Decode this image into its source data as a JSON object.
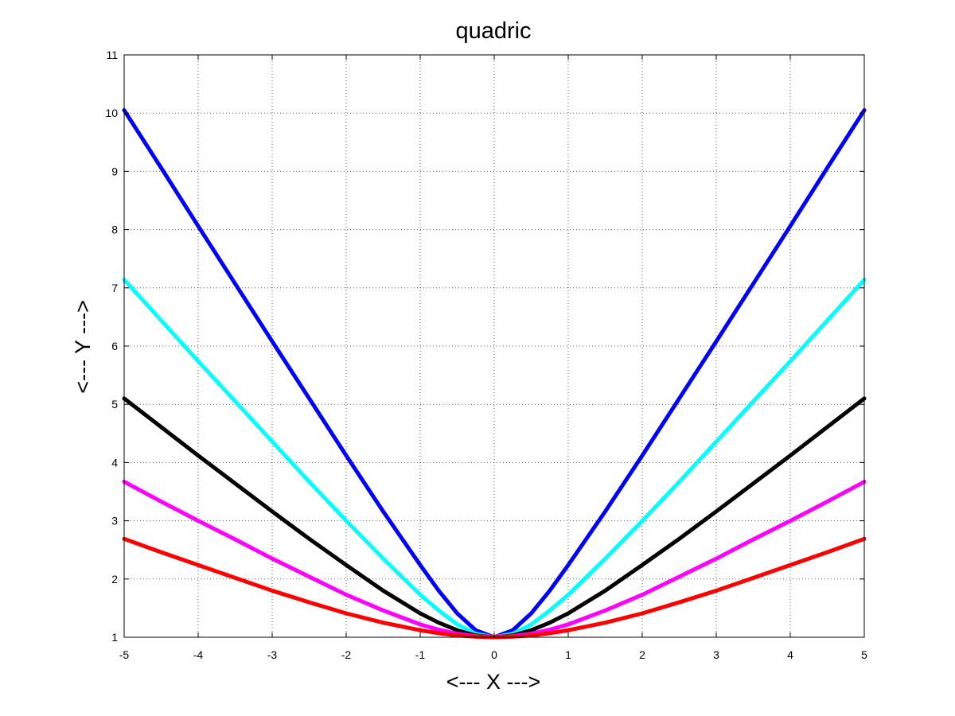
{
  "chart_data": {
    "type": "line",
    "title": "quadric",
    "xlabel": "<--- X --->",
    "ylabel": "<--- Y --->",
    "xlim": [
      -5,
      5
    ],
    "ylim": [
      1,
      11
    ],
    "xticks": [
      "-5",
      "-4",
      "-3",
      "-2",
      "-1",
      "0",
      "1",
      "2",
      "3",
      "4",
      "5"
    ],
    "yticks": [
      "1",
      "2",
      "3",
      "4",
      "5",
      "6",
      "7",
      "8",
      "9",
      "10",
      "11"
    ],
    "grid": true,
    "legend": "none",
    "x": [
      -5,
      -4.5,
      -4,
      -3.5,
      -3,
      -2.5,
      -2,
      -1.5,
      -1,
      -0.75,
      -0.5,
      -0.25,
      0,
      0.25,
      0.5,
      0.75,
      1,
      1.5,
      2,
      2.5,
      3,
      3.5,
      4,
      4.5,
      5
    ],
    "series": [
      {
        "color": "#0000ff",
        "values": [
          10.05,
          9.06,
          8.06,
          7.07,
          6.08,
          5.1,
          4.12,
          3.16,
          2.24,
          1.8,
          1.41,
          1.12,
          1.0,
          1.12,
          1.41,
          1.8,
          2.24,
          3.16,
          4.12,
          5.1,
          6.08,
          7.07,
          8.06,
          9.06,
          10.05
        ]
      },
      {
        "color": "#00ffff",
        "values": [
          7.14,
          6.44,
          5.74,
          5.05,
          4.36,
          3.67,
          3.0,
          2.35,
          1.73,
          1.46,
          1.22,
          1.06,
          1.0,
          1.06,
          1.22,
          1.46,
          1.73,
          2.35,
          3.0,
          3.67,
          4.36,
          5.05,
          5.74,
          6.44,
          7.14
        ]
      },
      {
        "color": "#000000",
        "values": [
          5.1,
          4.61,
          4.12,
          3.64,
          3.16,
          2.69,
          2.24,
          1.8,
          1.41,
          1.25,
          1.12,
          1.03,
          1.0,
          1.03,
          1.12,
          1.25,
          1.41,
          1.8,
          2.24,
          2.69,
          3.16,
          3.64,
          4.12,
          4.61,
          5.1
        ]
      },
      {
        "color": "#ff00ff",
        "values": [
          3.67,
          3.33,
          3.0,
          2.68,
          2.35,
          2.04,
          1.73,
          1.46,
          1.22,
          1.13,
          1.06,
          1.02,
          1.0,
          1.02,
          1.06,
          1.13,
          1.22,
          1.46,
          1.73,
          2.04,
          2.35,
          2.68,
          3.0,
          3.33,
          3.67
        ]
      },
      {
        "color": "#ff0000",
        "values": [
          2.69,
          2.46,
          2.24,
          2.02,
          1.8,
          1.6,
          1.41,
          1.25,
          1.12,
          1.07,
          1.03,
          1.01,
          1.0,
          1.01,
          1.03,
          1.07,
          1.12,
          1.25,
          1.41,
          1.6,
          1.8,
          2.02,
          2.24,
          2.46,
          2.69
        ]
      }
    ]
  }
}
